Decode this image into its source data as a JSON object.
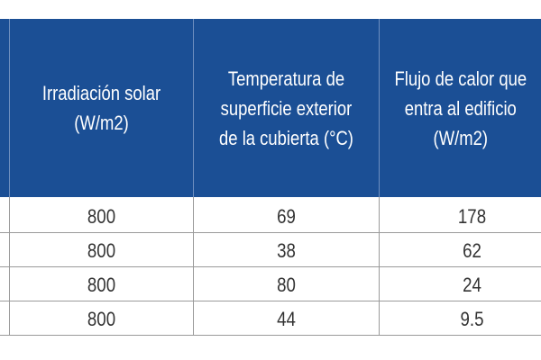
{
  "table": {
    "headers": [
      [
        "Irradiación solar",
        "(W/m2)"
      ],
      [
        "Temperatura de",
        "superficie exterior",
        "de la cubierta (°C)"
      ],
      [
        "Flujo de calor que",
        "entra al edificio",
        "(W/m2)"
      ]
    ],
    "rows": [
      [
        "800",
        "69",
        "178"
      ],
      [
        "800",
        "38",
        "62"
      ],
      [
        "800",
        "80",
        "24"
      ],
      [
        "800",
        "44",
        "9.5"
      ]
    ]
  },
  "colors": {
    "header_background": "#1b4f95",
    "header_text": "#ffffff",
    "body_text": "#333333",
    "grid_lines": "#9a9a9a"
  }
}
